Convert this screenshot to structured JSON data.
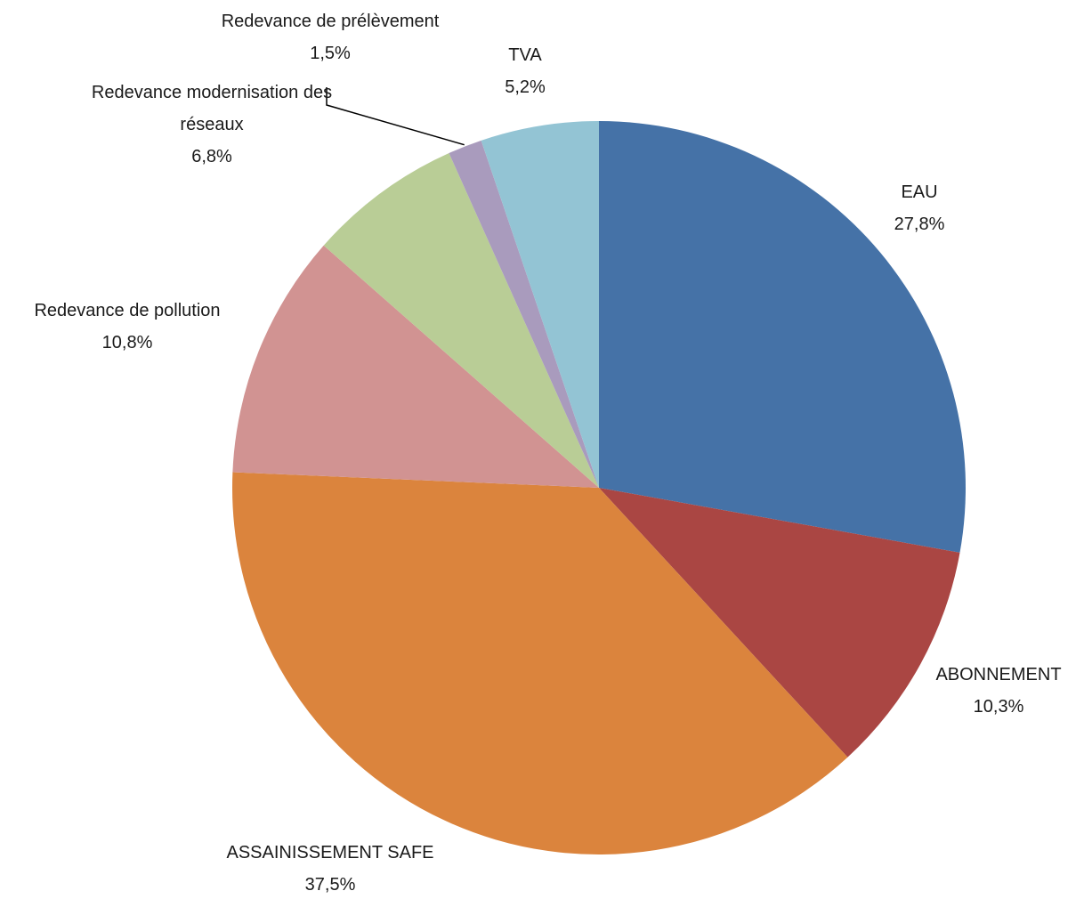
{
  "chart_data": {
    "type": "pie",
    "title": "",
    "start": "12 o'clock, clockwise",
    "label_position": "outside",
    "legend": "none",
    "slices": [
      {
        "label": "EAU",
        "value": 27.8,
        "value_label": "27,8%",
        "color": "#4572A7"
      },
      {
        "label": "ABONNEMENT",
        "value": 10.3,
        "value_label": "10,3%",
        "color": "#AA4643"
      },
      {
        "label": "ASSAINISSEMENT SAFE",
        "value": 37.5,
        "value_label": "37,5%",
        "color": "#DB843D"
      },
      {
        "label": "Redevance de pollution",
        "value": 10.8,
        "value_label": "10,8%",
        "color": "#D19392"
      },
      {
        "label": "Redevance modernisation des réseaux",
        "value": 6.8,
        "value_label": "6,8%",
        "color": "#B9CD96"
      },
      {
        "label": "Redevance de prélèvement",
        "value": 1.5,
        "value_label": "1,5%",
        "color": "#A99BBD"
      },
      {
        "label": "TVA",
        "value": 5.2,
        "value_label": "5,2%",
        "color": "#93C4D4"
      }
    ]
  }
}
